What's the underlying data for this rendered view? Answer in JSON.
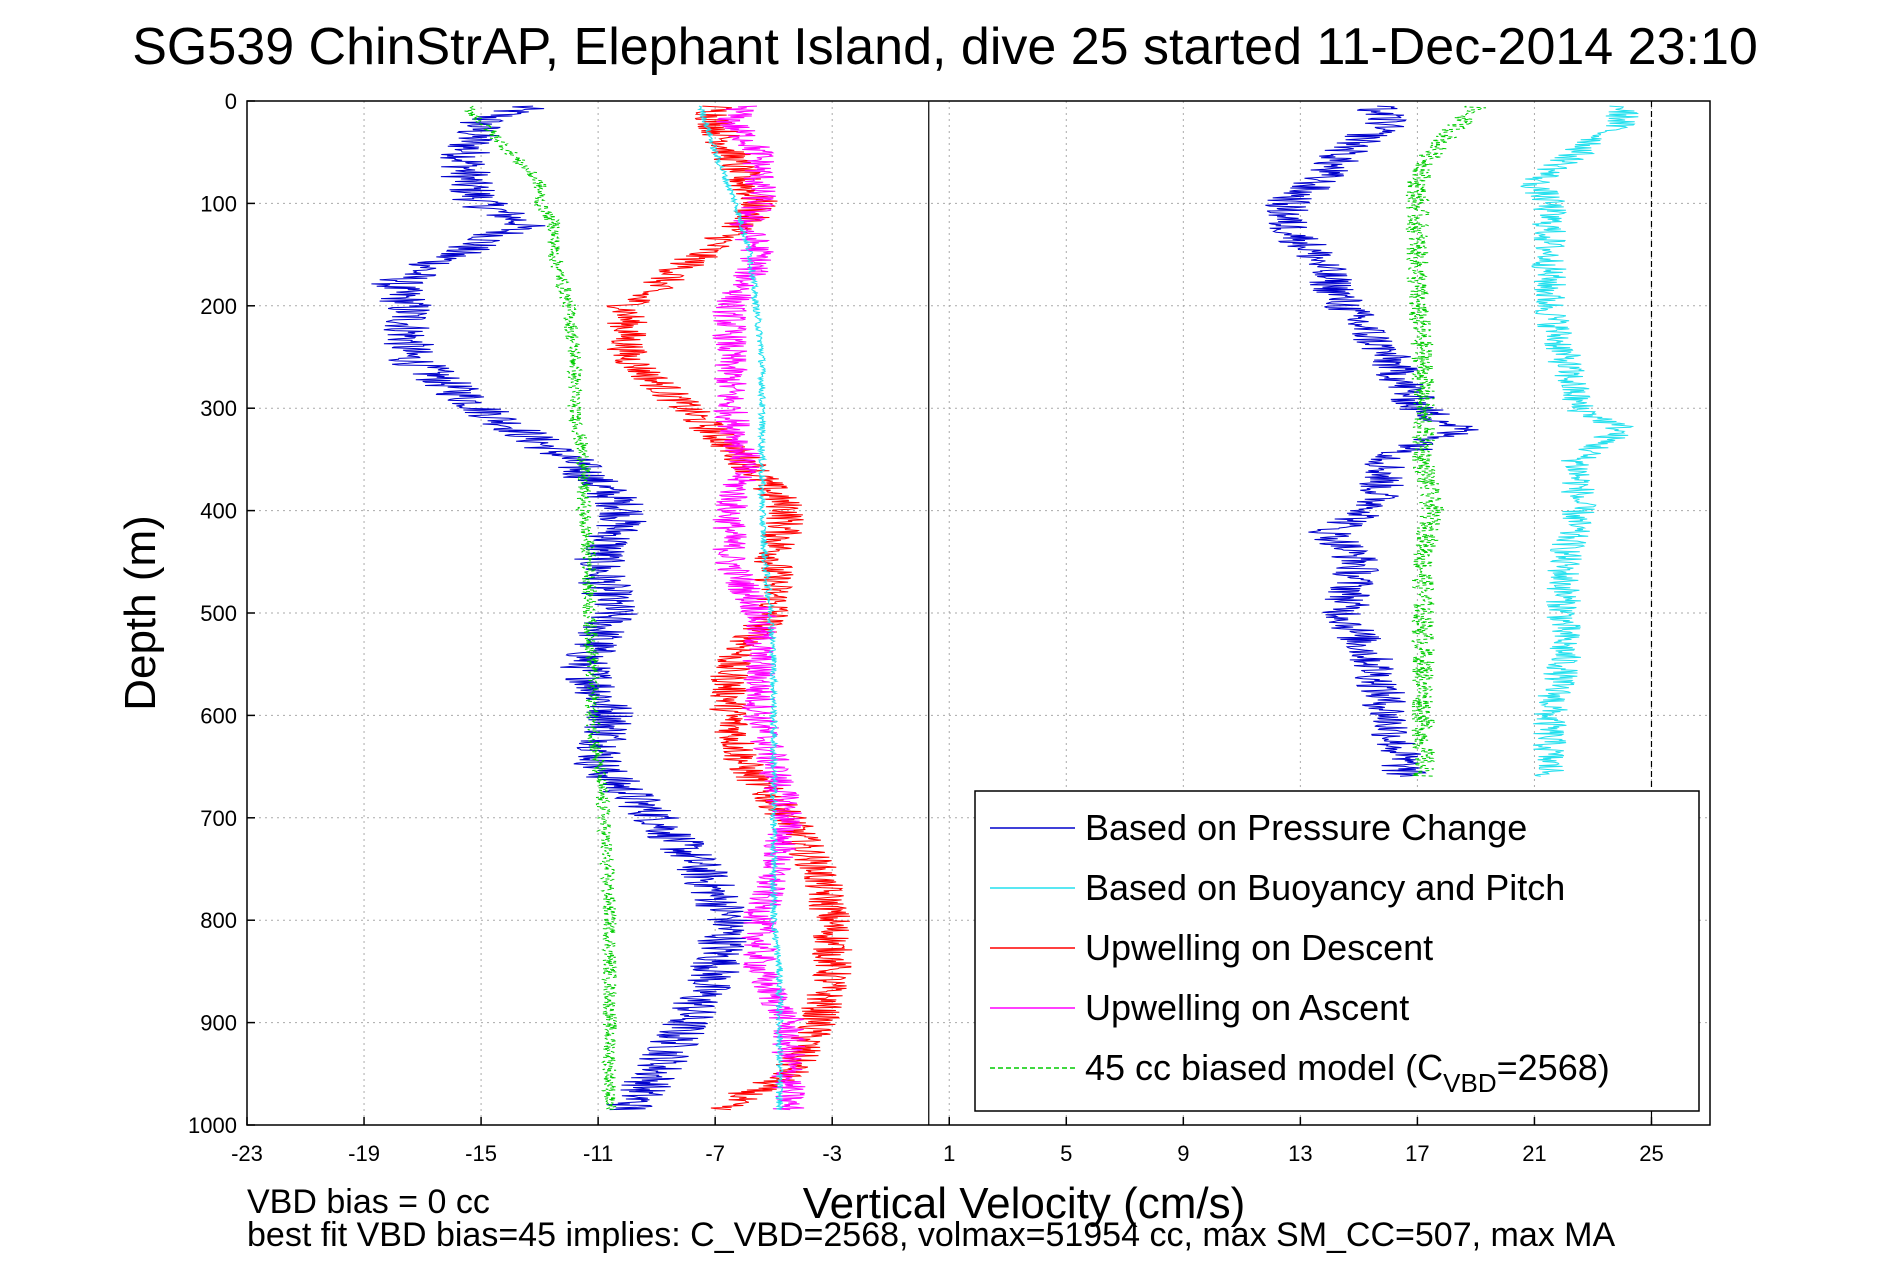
{
  "figure": {
    "title": "SG539 ChinStrAP, Elephant Island, dive 25 started 11-Dec-2014 23:10",
    "footnote_line1": "VBD bias = 0 cc",
    "footnote_line2": "best fit VBD bias=45 implies: C_VBD=2568, volmax=51954 cc, max SM_CC=507, max MA"
  },
  "colors": {
    "pressure": "#0000cc",
    "buoyancy": "#22e0ee",
    "descent": "#ff0000",
    "ascent": "#ff00ff",
    "model": "#00cc00",
    "axis": "#000000",
    "grid": "#aaaaaa"
  },
  "chart_data": {
    "type": "line",
    "title": "SG539 ChinStrAP, Elephant Island, dive 25 started 11-Dec-2014 23:10",
    "xlabel": "Vertical Velocity (cm/s)",
    "ylabel": "Depth (m)",
    "xlim": [
      -23,
      27
    ],
    "ylim": [
      1000,
      0
    ],
    "y_reversed": true,
    "grid": true,
    "xticks": [
      -23,
      -19,
      -15,
      -11,
      -7,
      -3,
      1,
      5,
      9,
      13,
      17,
      21,
      25
    ],
    "yticks": [
      0,
      100,
      200,
      300,
      400,
      500,
      600,
      700,
      800,
      900,
      1000
    ],
    "vertical_lines": [
      {
        "x": 0.3,
        "style": "solid"
      },
      {
        "x": 25,
        "style": "dashed"
      }
    ],
    "legend_position": "bottom-right",
    "legend": [
      {
        "label": "Based on Pressure Change",
        "key": "pressure"
      },
      {
        "label": "Based on Buoyancy and Pitch",
        "key": "buoyancy"
      },
      {
        "label": "Upwelling on Descent",
        "key": "descent"
      },
      {
        "label": "Upwelling on Ascent",
        "key": "ascent"
      },
      {
        "label_main": "45 cc biased model (C",
        "label_sub": "VBD",
        "label_end": "=2568)",
        "key": "model"
      }
    ],
    "series": [
      {
        "key": "pressure",
        "name": "Based on Pressure Change",
        "noise": 0.9,
        "depth": [
          5,
          20,
          50,
          80,
          100,
          120,
          150,
          180,
          200,
          250,
          300,
          350,
          400,
          450,
          500,
          550,
          600,
          650,
          700,
          750,
          800,
          850,
          900,
          950,
          985
        ],
        "x": [
          -13.5,
          -15,
          -15.5,
          -15.5,
          -15,
          -13.5,
          -16,
          -18,
          -17.5,
          -17.5,
          -15,
          -12,
          -10,
          -11,
          -10.5,
          -11.5,
          -10.5,
          -11,
          -9,
          -7.5,
          -6.5,
          -7,
          -8,
          -9,
          -10
        ]
      },
      {
        "key": "descent",
        "name": "Upwelling on Descent",
        "noise": 0.7,
        "depth": [
          5,
          20,
          50,
          80,
          100,
          120,
          150,
          180,
          200,
          250,
          300,
          350,
          400,
          450,
          500,
          550,
          600,
          650,
          700,
          750,
          800,
          850,
          900,
          950,
          985
        ],
        "x": [
          -7,
          -7,
          -6.5,
          -6,
          -5.5,
          -6,
          -7.5,
          -9,
          -10,
          -10,
          -8,
          -6,
          -4.5,
          -5,
          -5,
          -6.5,
          -6.5,
          -6,
          -4.5,
          -3.5,
          -3,
          -3,
          -3.5,
          -4.5,
          -7
        ]
      },
      {
        "key": "ascent",
        "name": "Upwelling on Ascent",
        "noise": 0.6,
        "depth": [
          5,
          20,
          50,
          80,
          100,
          120,
          150,
          180,
          200,
          250,
          300,
          350,
          400,
          450,
          500,
          550,
          600,
          650,
          700,
          750,
          800,
          850,
          900,
          950,
          985
        ],
        "x": [
          -6,
          -6.5,
          -5.5,
          -5.5,
          -5.5,
          -6,
          -5.5,
          -6,
          -6.5,
          -6.5,
          -6.5,
          -6,
          -6.5,
          -6.5,
          -5.5,
          -5.5,
          -5.5,
          -5,
          -4.5,
          -5,
          -5.5,
          -5.5,
          -4.5,
          -4.5,
          -4.5
        ]
      },
      {
        "key": "buoyancy",
        "name": "Based on Buoyancy and Pitch",
        "noise": 0.12,
        "depth": [
          5,
          50,
          100,
          150,
          200,
          250,
          300,
          350,
          400,
          450,
          500,
          550,
          600,
          650,
          700,
          750,
          800,
          850,
          900,
          950,
          985
        ],
        "x": [
          -7.5,
          -7,
          -6.3,
          -5.8,
          -5.6,
          -5.4,
          -5.4,
          -5.4,
          -5.4,
          -5.3,
          -5.1,
          -5,
          -5,
          -5,
          -5,
          -5,
          -5,
          -4.8,
          -4.8,
          -4.8,
          -4.8
        ]
      },
      {
        "key": "model",
        "name": "45 cc biased model (CVBD=2568)",
        "noise": 0.25,
        "dashed": true,
        "depth": [
          5,
          20,
          50,
          80,
          100,
          120,
          150,
          200,
          250,
          300,
          350,
          400,
          450,
          500,
          550,
          600,
          650,
          700,
          750,
          800,
          850,
          900,
          950,
          985
        ],
        "x": [
          -15.5,
          -15,
          -14,
          -13,
          -13,
          -12.5,
          -12.5,
          -12,
          -11.8,
          -11.8,
          -11.5,
          -11.5,
          -11.3,
          -11.3,
          -11.2,
          -11.2,
          -11,
          -10.8,
          -10.7,
          -10.6,
          -10.6,
          -10.6,
          -10.6,
          -10.6
        ]
      },
      {
        "key": "pressure",
        "name": "Based on Pressure Change (ascent)",
        "noise": 0.8,
        "depth": [
          5,
          20,
          50,
          80,
          100,
          120,
          150,
          200,
          250,
          300,
          320,
          350,
          400,
          420,
          450,
          500,
          550,
          600,
          650,
          660
        ],
        "x": [
          15.5,
          16,
          14.5,
          13.5,
          12.5,
          12.5,
          13.5,
          14.5,
          16,
          17,
          18.5,
          16,
          15.5,
          14,
          15,
          14.5,
          15.5,
          16,
          16.5,
          16.5
        ]
      },
      {
        "key": "buoyancy",
        "name": "Based on Buoyancy and Pitch (ascent)",
        "noise": 0.6,
        "depth": [
          5,
          20,
          50,
          80,
          100,
          150,
          200,
          250,
          300,
          320,
          350,
          400,
          450,
          500,
          550,
          600,
          650,
          660
        ],
        "x": [
          24,
          24,
          22.5,
          21,
          21.5,
          21.5,
          21.5,
          22,
          22.5,
          24,
          22.5,
          22.5,
          22,
          22,
          22,
          21.5,
          21.5,
          21.5
        ]
      },
      {
        "key": "model",
        "name": "45 cc biased model (ascent)",
        "noise": 0.4,
        "dashed": true,
        "depth": [
          5,
          20,
          50,
          80,
          100,
          150,
          200,
          250,
          300,
          350,
          400,
          450,
          500,
          550,
          600,
          650,
          660
        ],
        "x": [
          19,
          18.5,
          17.5,
          17,
          17,
          17,
          17,
          17.2,
          17.2,
          17.2,
          17.5,
          17.2,
          17.2,
          17.2,
          17.2,
          17.2,
          17.2
        ]
      }
    ]
  }
}
